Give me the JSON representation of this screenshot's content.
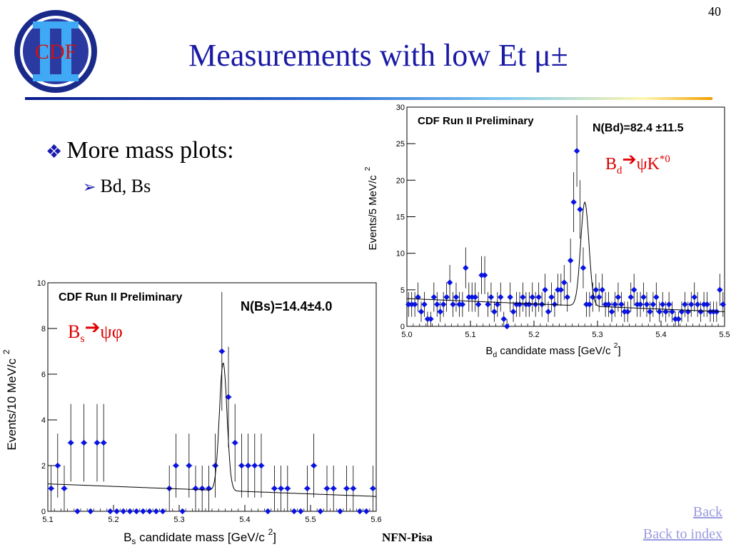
{
  "slide_number": "40",
  "title": "Measurements with low Et μ±",
  "bullets": {
    "level1": "More mass plots:",
    "level2": "Bd, Bs"
  },
  "footer": {
    "text": "NFN-Pisa"
  },
  "nav": {
    "back": "Back",
    "back_to_index": "Back to index"
  },
  "logo": {
    "text": "CDF",
    "numeral": "II"
  },
  "colors": {
    "title": "#1a1aa6",
    "marker": "#0a14e0",
    "annotation": "#e00000",
    "link": "#9a9ae0"
  },
  "chart_data": [
    {
      "id": "bd",
      "type": "scatter",
      "title": "CDF Run II Preliminary",
      "annotation": "N(Bd)=82.4 ±11.5",
      "decay_label": {
        "base": "B",
        "sub": "d",
        "arrow": "➔",
        "rest": "ψK",
        "sup": "*0"
      },
      "xlabel": {
        "base": "B",
        "sub": "d",
        "rest": " candidate mass [GeV/c ",
        "sup": "2",
        "end": "]"
      },
      "ylabel": {
        "text": "Events/5 MeV/c",
        "sup": "2"
      },
      "xlim": [
        5.0,
        5.5
      ],
      "ylim": [
        0,
        30
      ],
      "xticks": [
        5.0,
        5.1,
        5.2,
        5.3,
        5.4,
        5.5
      ],
      "xtick_labels": [
        "5.0",
        "5.1",
        "5.2",
        "5.3",
        "5.4",
        "5.5"
      ],
      "yticks": [
        0,
        5,
        10,
        15,
        20,
        25,
        30
      ],
      "ytick_labels": [
        "0",
        "5",
        "10",
        "15",
        "20",
        "25",
        "30"
      ],
      "grid": false,
      "points": {
        "x": [
          5.0025,
          5.0075,
          5.0125,
          5.0175,
          5.0225,
          5.0275,
          5.0325,
          5.0375,
          5.0425,
          5.0475,
          5.0525,
          5.0575,
          5.0625,
          5.0675,
          5.0725,
          5.0775,
          5.0825,
          5.0875,
          5.0925,
          5.0975,
          5.1025,
          5.1075,
          5.1125,
          5.1175,
          5.1225,
          5.1275,
          5.1325,
          5.1375,
          5.1425,
          5.1475,
          5.1525,
          5.1575,
          5.1625,
          5.1675,
          5.1725,
          5.1775,
          5.1825,
          5.1875,
          5.1925,
          5.1975,
          5.2025,
          5.2075,
          5.2125,
          5.2175,
          5.2225,
          5.2275,
          5.2325,
          5.2375,
          5.2425,
          5.2475,
          5.2525,
          5.2575,
          5.2625,
          5.2675,
          5.2725,
          5.2775,
          5.2825,
          5.2875,
          5.2925,
          5.2975,
          5.3025,
          5.3075,
          5.3125,
          5.3175,
          5.3225,
          5.3275,
          5.3325,
          5.3375,
          5.3425,
          5.3475,
          5.3525,
          5.3575,
          5.3625,
          5.3675,
          5.3725,
          5.3775,
          5.3825,
          5.3875,
          5.3925,
          5.3975,
          5.4025,
          5.4075,
          5.4125,
          5.4175,
          5.4225,
          5.4275,
          5.4325,
          5.4375,
          5.4425,
          5.4475,
          5.4525,
          5.4575,
          5.4625,
          5.4675,
          5.4725,
          5.4775,
          5.4825,
          5.4875,
          5.4925,
          5.4975
        ],
        "y": [
          3,
          3,
          3,
          4,
          2,
          3,
          1,
          1,
          4,
          3,
          2,
          3,
          4,
          6,
          3,
          4,
          3,
          3,
          8,
          4,
          4,
          4,
          3,
          7,
          7,
          3,
          4,
          2,
          3,
          4,
          1,
          0,
          4,
          2,
          3,
          3,
          4,
          3,
          3,
          4,
          3,
          4,
          3,
          5,
          2,
          4,
          3,
          5,
          5,
          6,
          4,
          9,
          17,
          24,
          16,
          8,
          3,
          3,
          4,
          5,
          4,
          5,
          3,
          3,
          2,
          3,
          4,
          3,
          2,
          2,
          4,
          5,
          3,
          3,
          4,
          3,
          2,
          3,
          4,
          2,
          3,
          2,
          3,
          2,
          1,
          1,
          2,
          3,
          2,
          3,
          4,
          3,
          2,
          3,
          3,
          2,
          2,
          2,
          5,
          3
        ],
        "err": [
          1.7,
          1.7,
          1.7,
          2.0,
          1.4,
          1.7,
          1.0,
          1.0,
          2.0,
          1.7,
          1.4,
          1.7,
          2.0,
          2.4,
          1.7,
          2.0,
          1.7,
          1.7,
          2.8,
          2.0,
          2.0,
          2.0,
          1.7,
          2.6,
          2.6,
          1.7,
          2.0,
          1.4,
          1.7,
          2.0,
          1.0,
          1.0,
          2.0,
          1.4,
          1.7,
          1.7,
          2.0,
          1.7,
          1.7,
          2.0,
          1.7,
          2.0,
          1.7,
          2.2,
          1.4,
          2.0,
          1.7,
          2.2,
          2.2,
          2.4,
          2.0,
          3.0,
          4.1,
          4.9,
          4.0,
          2.8,
          1.7,
          1.7,
          2.0,
          2.2,
          2.0,
          2.2,
          1.7,
          1.7,
          1.4,
          1.7,
          2.0,
          1.7,
          1.4,
          1.4,
          2.0,
          2.2,
          1.7,
          1.7,
          2.0,
          1.7,
          1.4,
          1.7,
          2.0,
          1.4,
          1.7,
          1.4,
          1.7,
          1.4,
          1.0,
          1.0,
          1.4,
          1.7,
          1.4,
          1.7,
          2.0,
          1.7,
          1.4,
          1.7,
          1.7,
          1.4,
          1.4,
          1.4,
          2.2,
          1.7
        ]
      },
      "fit": {
        "background_start": 3.8,
        "background_end": 2.0,
        "peak_mean": 5.28,
        "peak_sigma": 0.0065,
        "peak_height": 14.2
      }
    },
    {
      "id": "bs",
      "type": "scatter",
      "title": "CDF Run II Preliminary",
      "annotation": "N(Bs)=14.4±4.0",
      "decay_label": {
        "base": "B",
        "sub": "s",
        "arrow": "➔",
        "rest": "ψφ",
        "sup": ""
      },
      "xlabel": {
        "base": "B",
        "sub": "s",
        "rest": " candidate mass [GeV/c ",
        "sup": "2",
        "end": "]"
      },
      "ylabel": {
        "text": "Events/10 MeV/c",
        "sup": "2"
      },
      "xlim": [
        5.1,
        5.6
      ],
      "ylim": [
        0,
        10
      ],
      "xticks": [
        5.1,
        5.2,
        5.3,
        5.4,
        5.5,
        5.6
      ],
      "xtick_labels": [
        "5.1",
        "5.2",
        "5.3",
        "5.4",
        "5.5",
        "5.6"
      ],
      "yticks": [
        0,
        2,
        4,
        6,
        8,
        10
      ],
      "ytick_labels": [
        "0",
        "2",
        "4",
        "6",
        "8",
        "10"
      ],
      "grid": false,
      "points": {
        "x": [
          5.105,
          5.115,
          5.125,
          5.135,
          5.145,
          5.155,
          5.165,
          5.175,
          5.185,
          5.195,
          5.205,
          5.215,
          5.225,
          5.235,
          5.245,
          5.255,
          5.265,
          5.275,
          5.285,
          5.295,
          5.305,
          5.315,
          5.325,
          5.335,
          5.345,
          5.355,
          5.365,
          5.375,
          5.385,
          5.395,
          5.405,
          5.415,
          5.425,
          5.435,
          5.445,
          5.455,
          5.465,
          5.475,
          5.485,
          5.495,
          5.505,
          5.515,
          5.525,
          5.535,
          5.545,
          5.555,
          5.565,
          5.575,
          5.585,
          5.595
        ],
        "y": [
          1,
          2,
          1,
          3,
          0,
          3,
          0,
          3,
          3,
          0,
          0,
          0,
          0,
          0,
          0,
          0,
          0,
          0,
          1,
          2,
          0,
          2,
          1,
          1,
          1,
          2,
          7,
          5,
          3,
          2,
          2,
          2,
          2,
          0,
          1,
          1,
          1,
          0,
          0,
          1,
          2,
          0,
          1,
          1,
          0,
          1,
          1,
          0,
          0,
          1
        ],
        "err": [
          1,
          1.4,
          1,
          1.7,
          0,
          1.7,
          0,
          1.7,
          1.7,
          0,
          0,
          0,
          0,
          0,
          0,
          0,
          0,
          0,
          1,
          1.4,
          0,
          1.4,
          1,
          1,
          1,
          1.4,
          2.6,
          2.2,
          1.7,
          1.4,
          1.4,
          1.4,
          1.4,
          0,
          1,
          1,
          1,
          0,
          0,
          1,
          1.4,
          0,
          1,
          1,
          0,
          1,
          1,
          0,
          0,
          1
        ]
      },
      "fit": {
        "background_start": 1.2,
        "background_end": 0.65,
        "peak_mean": 5.367,
        "peak_sigma": 0.0058,
        "peak_height": 5.6
      }
    }
  ]
}
